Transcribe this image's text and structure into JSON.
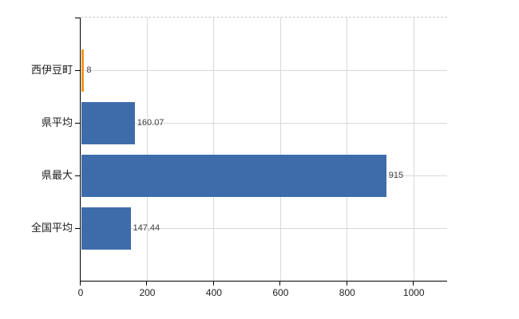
{
  "chart_data": {
    "type": "bar",
    "orientation": "horizontal",
    "title": "",
    "xlabel": "",
    "ylabel": "",
    "categories": [
      "西伊豆町",
      "県平均",
      "県最大",
      "全国平均"
    ],
    "values": [
      8,
      160.07,
      915,
      147.44
    ],
    "value_labels": [
      "8",
      "160.07",
      "915",
      "147.44"
    ],
    "bar_colors": [
      "#f7941e",
      "#3e6cab",
      "#3e6cab",
      "#3e6cab"
    ],
    "xlim": [
      0,
      1100
    ],
    "xticks": [
      0,
      200,
      400,
      600,
      800,
      1000
    ],
    "grid": true,
    "legend": "none",
    "colors": {
      "background": "#ffffff",
      "axis": "#000000",
      "gridline": "#d9d9d9",
      "top_border": "#c9c9c9",
      "category_text": "#1a1a1a",
      "tick_text": "#222222",
      "value_text": "#3d3d3d"
    }
  }
}
